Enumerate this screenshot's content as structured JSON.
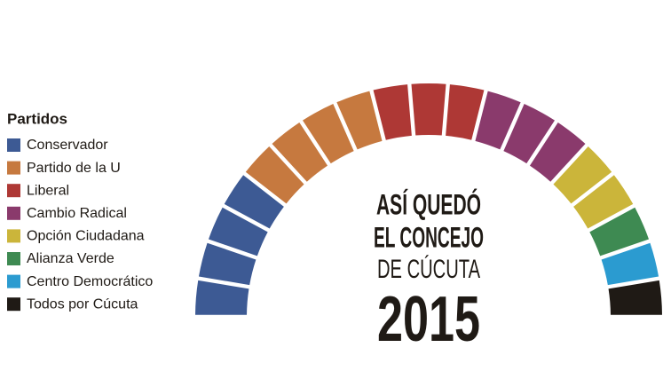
{
  "chart_data": {
    "type": "parliament",
    "legend_title": "Partidos",
    "categories": [
      "Conservador",
      "Partido de la U",
      "Liberal",
      "Cambio Radical",
      "Opción Ciudadana",
      "Alianza Verde",
      "Centro Democrático",
      "Todos por Cúcuta"
    ],
    "values": [
      4,
      4,
      3,
      3,
      2,
      1,
      1,
      1
    ],
    "colors": [
      "#3d5a94",
      "#c6793f",
      "#ae3835",
      "#8a3a6c",
      "#cbb53a",
      "#3e8a52",
      "#2b9bd0",
      "#1f1a15"
    ],
    "title_lines": [
      "ASÍ QUEDÓ",
      "EL CONCEJO",
      "DE CÚCUTA"
    ],
    "year": "2015"
  }
}
